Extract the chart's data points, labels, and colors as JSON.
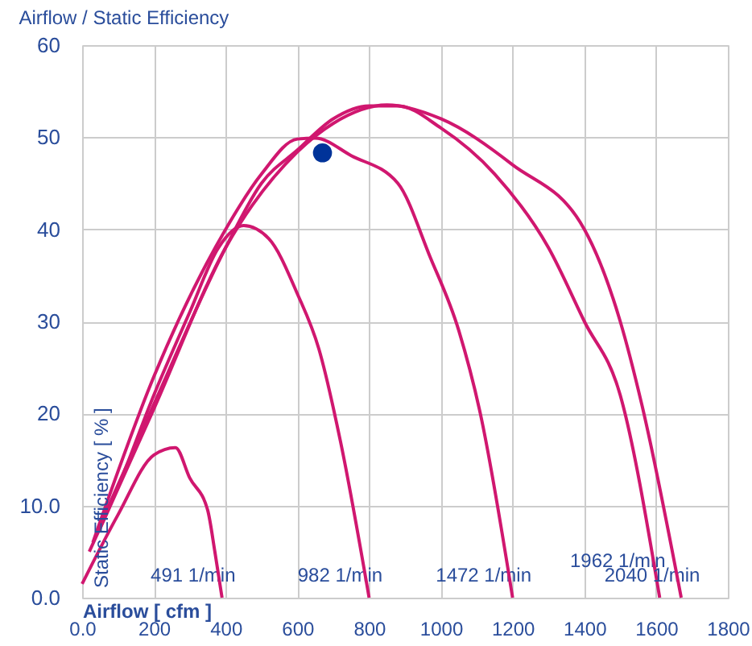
{
  "chart_data": {
    "type": "line",
    "title": "Airflow / Static Efficiency",
    "xlabel": "Airflow [ cfm ]",
    "ylabel": "Static Efficiency [ % ]",
    "xlim": [
      0,
      1800
    ],
    "ylim": [
      0,
      60
    ],
    "xticks": [
      {
        "value": 0,
        "label": "0.0"
      },
      200,
      400,
      600,
      800,
      1000,
      1200,
      1400,
      1600,
      1800
    ],
    "yticks": [
      {
        "value": 0,
        "label": "0.0"
      },
      {
        "value": 10,
        "label": "10.0"
      },
      20,
      30,
      40,
      50,
      60
    ],
    "grid": true,
    "line_style": "solid",
    "marker": "none",
    "series": [
      {
        "name": "491 1/min",
        "color": "#d0176f",
        "x": [
          0,
          100,
          200,
          260,
          300,
          350,
          370,
          390
        ],
        "values": [
          1.5,
          9,
          15.5,
          16.3,
          13,
          9.5,
          5,
          0
        ]
      },
      {
        "name": "982 1/min",
        "color": "#d0176f",
        "x": [
          20,
          100,
          200,
          300,
          380,
          450,
          520,
          600,
          660,
          720,
          800
        ],
        "values": [
          5,
          12,
          22,
          31,
          38,
          40.4,
          39,
          33,
          27,
          17,
          0
        ]
      },
      {
        "name": "1472 1/min",
        "color": "#d0176f",
        "x": [
          30,
          200,
          400,
          500,
          600,
          650,
          750,
          880,
          970,
          1050,
          1110,
          1200
        ],
        "values": [
          6,
          24,
          40,
          46,
          49.8,
          49.9,
          48,
          45,
          37,
          29,
          20,
          0
        ]
      },
      {
        "name": "1962 1/min",
        "color": "#d0176f",
        "x": [
          40,
          200,
          400,
          500,
          600,
          700,
          800,
          880,
          1000,
          1150,
          1300,
          1400,
          1500,
          1610
        ],
        "values": [
          7,
          21,
          38,
          45,
          48.6,
          52,
          53.4,
          53.4,
          51,
          46,
          38,
          30,
          22,
          0
        ]
      },
      {
        "name": "2040 1/min",
        "color": "#d0176f",
        "x": [
          50,
          200,
          400,
          600,
          700,
          850,
          1000,
          1200,
          1400,
          1500,
          1560,
          1670
        ],
        "values": [
          7.5,
          20.5,
          38,
          48.4,
          51.5,
          53.5,
          52,
          47,
          40,
          30,
          21,
          0
        ]
      },
      {
        "type": "scatter",
        "marker": "circle",
        "color": "#003399",
        "x": [
          670
        ],
        "values": [
          48.3
        ]
      }
    ]
  }
}
